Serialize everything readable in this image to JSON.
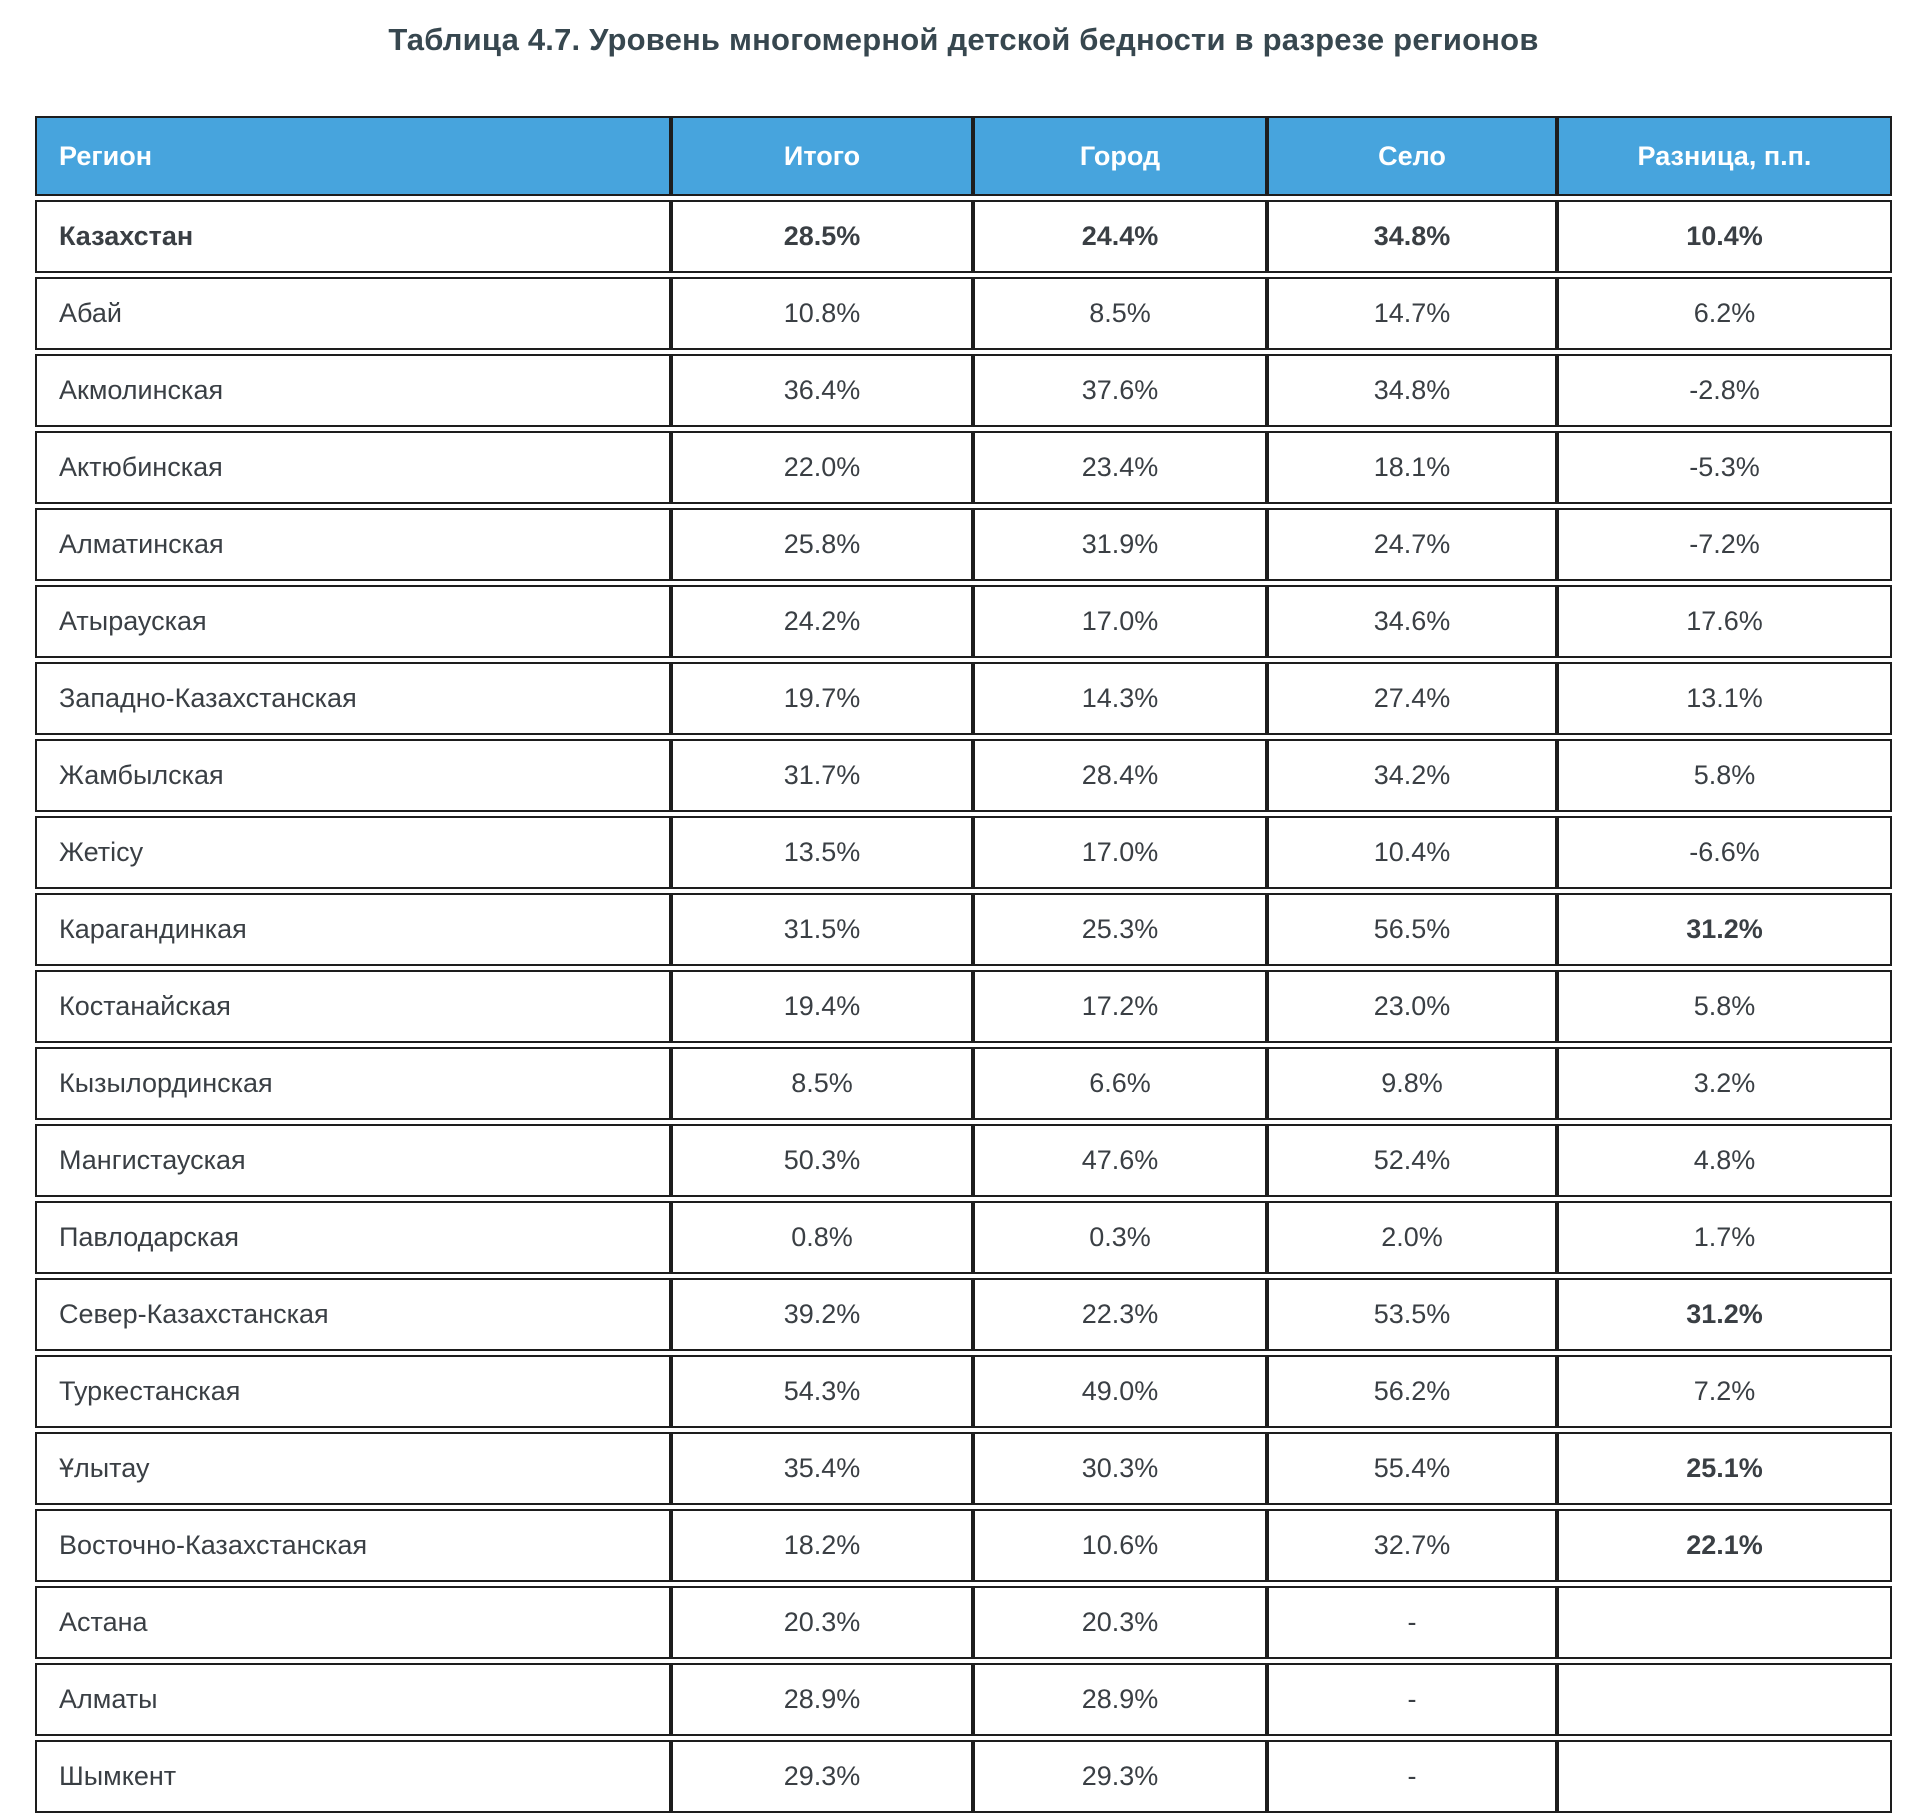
{
  "title": "Таблица 4.7. Уровень многомерной детской бедности в разрезе регионов",
  "table": {
    "columns": [
      "Регион",
      "Итого",
      "Город",
      "Село",
      "Разница, п.п."
    ],
    "rows": [
      {
        "region": "Казахстан",
        "bold": true,
        "values": [
          {
            "text": "28.5%",
            "bg": "cyan",
            "bold": true
          },
          {
            "text": "24.4%",
            "bg": "cyan",
            "bold": true
          },
          {
            "text": "34.8%",
            "bg": "light",
            "bold": true
          },
          {
            "text": "10.4%",
            "bg": "white",
            "bold": true
          }
        ]
      },
      {
        "region": "Абай",
        "bold": false,
        "values": [
          {
            "text": "10.8%",
            "bg": "blue",
            "bold": false
          },
          {
            "text": "8.5%",
            "bg": "blue",
            "bold": false
          },
          {
            "text": "14.7%",
            "bg": "blue",
            "bold": false
          },
          {
            "text": "6.2%",
            "bg": "white",
            "bold": false
          }
        ]
      },
      {
        "region": "Акмолинская",
        "bold": false,
        "values": [
          {
            "text": "36.4%",
            "bg": "light",
            "bold": false
          },
          {
            "text": "37.6%",
            "bg": "light",
            "bold": false
          },
          {
            "text": "34.8%",
            "bg": "light",
            "bold": false
          },
          {
            "text": "-2.8%",
            "bg": "white",
            "bold": false
          }
        ]
      },
      {
        "region": "Актюбинская",
        "bold": false,
        "values": [
          {
            "text": "22.0%",
            "bg": "cyan",
            "bold": false
          },
          {
            "text": "23.4%",
            "bg": "cyan",
            "bold": false
          },
          {
            "text": "18.1%",
            "bg": "blue",
            "bold": false
          },
          {
            "text": "-5.3%",
            "bg": "white",
            "bold": false
          }
        ]
      },
      {
        "region": "Алматинская",
        "bold": false,
        "values": [
          {
            "text": "25.8%",
            "bg": "cyan",
            "bold": false
          },
          {
            "text": "31.9%",
            "bg": "light",
            "bold": false
          },
          {
            "text": "24.7%",
            "bg": "cyan",
            "bold": false
          },
          {
            "text": "-7.2%",
            "bg": "white",
            "bold": false
          }
        ]
      },
      {
        "region": "Атырауская",
        "bold": false,
        "values": [
          {
            "text": "24.2%",
            "bg": "cyan",
            "bold": false
          },
          {
            "text": "17.0%",
            "bg": "blue",
            "bold": false
          },
          {
            "text": "34.6%",
            "bg": "light",
            "bold": false
          },
          {
            "text": "17.6%",
            "bg": "white",
            "bold": false
          }
        ]
      },
      {
        "region": "Западно-Казахстанская",
        "bold": false,
        "values": [
          {
            "text": "19.7%",
            "bg": "blue",
            "bold": false
          },
          {
            "text": "14.3%",
            "bg": "blue",
            "bold": false
          },
          {
            "text": "27.4%",
            "bg": "cyan",
            "bold": false
          },
          {
            "text": "13.1%",
            "bg": "white",
            "bold": false
          }
        ]
      },
      {
        "region": "Жамбылская",
        "bold": false,
        "values": [
          {
            "text": "31.7%",
            "bg": "light",
            "bold": false
          },
          {
            "text": "28.4%",
            "bg": "cyan",
            "bold": false
          },
          {
            "text": "34.2%",
            "bg": "light",
            "bold": false
          },
          {
            "text": "5.8%",
            "bg": "white",
            "bold": false
          }
        ]
      },
      {
        "region": "Жетісу",
        "bold": false,
        "values": [
          {
            "text": "13.5%",
            "bg": "blue",
            "bold": false
          },
          {
            "text": "17.0%",
            "bg": "blue",
            "bold": false
          },
          {
            "text": "10.4%",
            "bg": "blue",
            "bold": false
          },
          {
            "text": "-6.6%",
            "bg": "white",
            "bold": false
          }
        ]
      },
      {
        "region": "Карагандинкая",
        "bold": false,
        "values": [
          {
            "text": "31.5%",
            "bg": "light",
            "bold": false
          },
          {
            "text": "25.3%",
            "bg": "cyan",
            "bold": false
          },
          {
            "text": "56.5%",
            "bg": "light",
            "bold": false
          },
          {
            "text": "31.2%",
            "bg": "light",
            "bold": true
          }
        ]
      },
      {
        "region": "Костанайская",
        "bold": false,
        "values": [
          {
            "text": "19.4%",
            "bg": "blue",
            "bold": false
          },
          {
            "text": "17.2%",
            "bg": "blue",
            "bold": false
          },
          {
            "text": "23.0%",
            "bg": "cyan",
            "bold": false
          },
          {
            "text": "5.8%",
            "bg": "white",
            "bold": false
          }
        ]
      },
      {
        "region": "Кызылординская",
        "bold": false,
        "values": [
          {
            "text": "8.5%",
            "bg": "blue",
            "bold": false
          },
          {
            "text": "6.6%",
            "bg": "blue",
            "bold": false
          },
          {
            "text": "9.8%",
            "bg": "blue",
            "bold": false
          },
          {
            "text": "3.2%",
            "bg": "white",
            "bold": false
          }
        ]
      },
      {
        "region": "Мангистауская",
        "bold": false,
        "values": [
          {
            "text": "50.3%",
            "bg": "light",
            "bold": false
          },
          {
            "text": "47.6%",
            "bg": "light",
            "bold": false
          },
          {
            "text": "52.4%",
            "bg": "light",
            "bold": false
          },
          {
            "text": "4.8%",
            "bg": "white",
            "bold": false
          }
        ]
      },
      {
        "region": "Павлодарская",
        "bold": false,
        "values": [
          {
            "text": "0.8%",
            "bg": "blue",
            "bold": false
          },
          {
            "text": "0.3%",
            "bg": "blue",
            "bold": false
          },
          {
            "text": "2.0%",
            "bg": "blue",
            "bold": false
          },
          {
            "text": "1.7%",
            "bg": "white",
            "bold": false
          }
        ]
      },
      {
        "region": "Север-Казахстанская",
        "bold": false,
        "values": [
          {
            "text": "39.2%",
            "bg": "light",
            "bold": false
          },
          {
            "text": "22.3%",
            "bg": "cyan",
            "bold": false
          },
          {
            "text": "53.5%",
            "bg": "light",
            "bold": false
          },
          {
            "text": "31.2%",
            "bg": "light",
            "bold": true
          }
        ]
      },
      {
        "region": "Туркестанская",
        "bold": false,
        "values": [
          {
            "text": "54.3%",
            "bg": "light",
            "bold": false
          },
          {
            "text": "49.0%",
            "bg": "light",
            "bold": false
          },
          {
            "text": "56.2%",
            "bg": "light",
            "bold": false
          },
          {
            "text": "7.2%",
            "bg": "white",
            "bold": false
          }
        ]
      },
      {
        "region": "Ұлытау",
        "bold": false,
        "values": [
          {
            "text": "35.4%",
            "bg": "light",
            "bold": false
          },
          {
            "text": "30.3%",
            "bg": "light",
            "bold": false
          },
          {
            "text": "55.4%",
            "bg": "light",
            "bold": false
          },
          {
            "text": "25.1%",
            "bg": "light",
            "bold": true
          }
        ]
      },
      {
        "region": "Восточно-Казахстанская",
        "bold": false,
        "values": [
          {
            "text": "18.2%",
            "bg": "blue",
            "bold": false
          },
          {
            "text": "10.6%",
            "bg": "blue",
            "bold": false
          },
          {
            "text": "32.7%",
            "bg": "light",
            "bold": false
          },
          {
            "text": "22.1%",
            "bg": "light",
            "bold": true
          }
        ]
      },
      {
        "region": "Астана",
        "bold": false,
        "values": [
          {
            "text": "20.3%",
            "bg": "cyan",
            "bold": false
          },
          {
            "text": "20.3%",
            "bg": "cyan",
            "bold": false
          },
          {
            "text": "-",
            "bg": "white",
            "bold": false
          },
          {
            "text": "",
            "bg": "white",
            "bold": false
          }
        ]
      },
      {
        "region": "Алматы",
        "bold": false,
        "values": [
          {
            "text": "28.9%",
            "bg": "cyan",
            "bold": false
          },
          {
            "text": "28.9%",
            "bg": "cyan",
            "bold": false
          },
          {
            "text": "-",
            "bg": "white",
            "bold": false
          },
          {
            "text": "",
            "bg": "white",
            "bold": false
          }
        ]
      },
      {
        "region": "Шымкент",
        "bold": false,
        "values": [
          {
            "text": "29.3%",
            "bg": "cyan",
            "bold": false
          },
          {
            "text": "29.3%",
            "bg": "cyan",
            "bold": false
          },
          {
            "text": "-",
            "bg": "white",
            "bold": false
          },
          {
            "text": "",
            "bg": "white",
            "bold": false
          }
        ]
      }
    ]
  },
  "colors": {
    "header_bg": "#47a4dd",
    "cell_blue": "#47a4dd",
    "cell_cyan": "#3dc4e4",
    "cell_light": "#cddee9",
    "cell_white": "#ffffff",
    "border_color": "#1d1d1d",
    "title_color": "#37474f",
    "text_color": "#3a3f44",
    "bold_text_color": "#2a3137"
  }
}
